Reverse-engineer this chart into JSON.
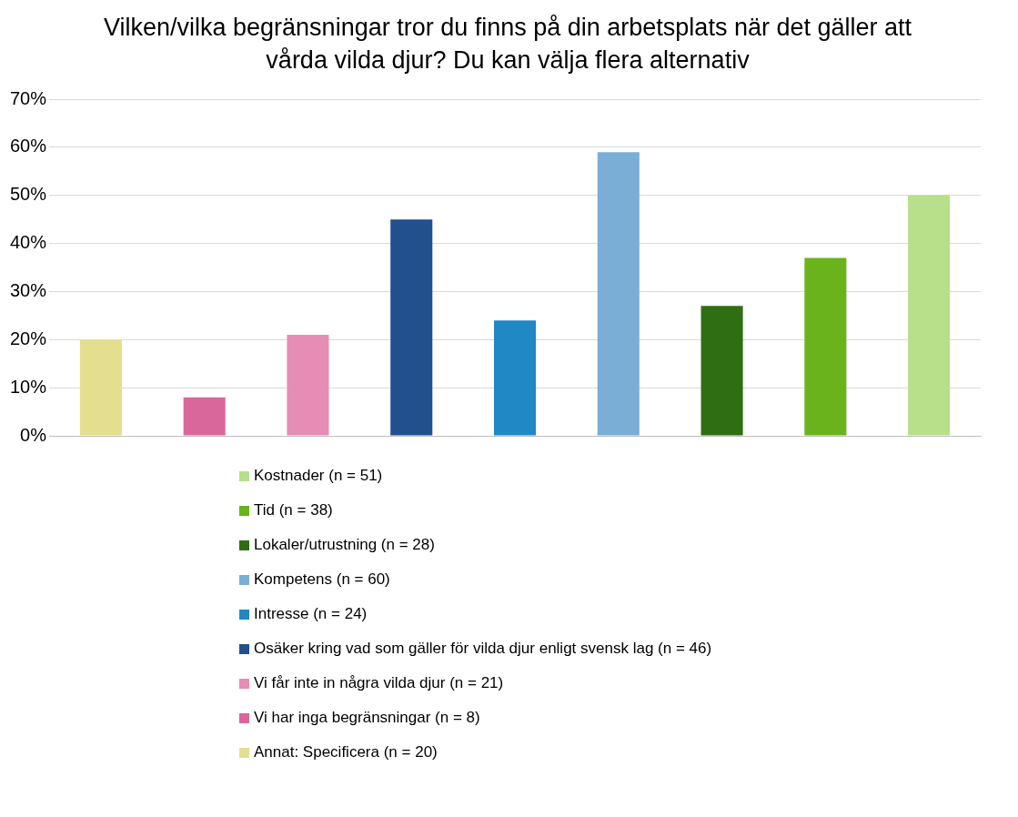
{
  "chart_data": {
    "type": "bar",
    "title": "Vilken/vilka begränsningar tror du finns på din arbetsplats när det gäller att vårda vilda djur? Du kan välja flera alternativ",
    "categories": [
      null,
      null,
      null,
      null,
      null,
      null,
      null,
      null,
      null
    ],
    "series": [
      {
        "name": "Kostnader (n = 51)",
        "color": "#b7e08a",
        "values": [
          null,
          null,
          null,
          null,
          null,
          null,
          null,
          null,
          50
        ]
      },
      {
        "name": "Tid (n = 38)",
        "color": "#6ab31d",
        "values": [
          null,
          null,
          null,
          null,
          null,
          null,
          null,
          37,
          null
        ]
      },
      {
        "name": "Lokaler/utrustning (n = 28)",
        "color": "#2f6e12",
        "values": [
          null,
          null,
          null,
          null,
          null,
          null,
          27,
          null,
          null
        ]
      },
      {
        "name": "Kompetens (n = 60)",
        "color": "#7aaed6",
        "values": [
          null,
          null,
          null,
          null,
          null,
          59,
          null,
          null,
          null
        ]
      },
      {
        "name": "Intresse (n = 24)",
        "color": "#2088c4",
        "values": [
          null,
          null,
          null,
          null,
          24,
          null,
          null,
          null,
          null
        ]
      },
      {
        "name": "Osäker kring vad som gäller för vilda djur enligt svensk lag (n = 46)",
        "color": "#22508f",
        "values": [
          null,
          null,
          null,
          45,
          null,
          null,
          null,
          null,
          null
        ]
      },
      {
        "name": "Vi får inte in några vilda djur (n = 21)",
        "color": "#e68db5",
        "values": [
          null,
          null,
          21,
          null,
          null,
          null,
          null,
          null,
          null
        ]
      },
      {
        "name": "Vi har inga begränsningar (n = 8)",
        "color": "#d9679b",
        "values": [
          null,
          8,
          null,
          null,
          null,
          null,
          null,
          null,
          null
        ]
      },
      {
        "name": "Annat: Specificera (n = 20)",
        "color": "#e3df8f",
        "values": [
          20,
          null,
          null,
          null,
          null,
          null,
          null,
          null,
          null
        ]
      }
    ],
    "ylim": [
      0,
      70
    ],
    "yticks": [
      {
        "value": 0,
        "label": "0%"
      },
      {
        "value": 10,
        "label": "10%"
      },
      {
        "value": 20,
        "label": "20%"
      },
      {
        "value": 30,
        "label": "30%"
      },
      {
        "value": 40,
        "label": "40%"
      },
      {
        "value": 50,
        "label": "50%"
      },
      {
        "value": 60,
        "label": "60%"
      },
      {
        "value": 70,
        "label": "70%"
      }
    ],
    "grid": "y",
    "legend": "bottom"
  }
}
